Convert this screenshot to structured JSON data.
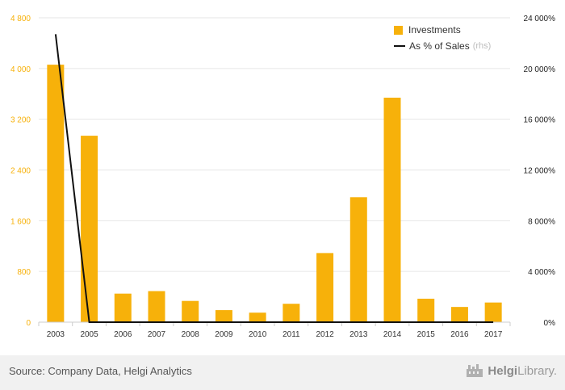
{
  "chart_data": {
    "type": "bar",
    "categories": [
      "2003",
      "2005",
      "2006",
      "2007",
      "2008",
      "2009",
      "2010",
      "2011",
      "2012",
      "2013",
      "2014",
      "2015",
      "2016",
      "2017"
    ],
    "series": [
      {
        "name": "Investments",
        "axis": "left",
        "type": "bar",
        "values": [
          4060,
          2940,
          450,
          490,
          335,
          190,
          150,
          290,
          1090,
          1970,
          3540,
          370,
          240,
          310
        ]
      },
      {
        "name": "As % of Sales",
        "axis": "right",
        "type": "line",
        "values": [
          22700,
          0,
          0,
          0,
          0,
          0,
          0,
          0,
          0,
          0,
          0,
          0,
          0,
          0
        ]
      }
    ],
    "y_left": {
      "ticks": [
        "0",
        "800",
        "1 600",
        "2 400",
        "3 200",
        "4 000",
        "4 800"
      ],
      "ylim": [
        0,
        4800
      ]
    },
    "y_right": {
      "ticks": [
        "0%",
        "4 000%",
        "8 000%",
        "12 000%",
        "16 000%",
        "20 000%",
        "24 000%"
      ],
      "ylim": [
        0,
        24000
      ]
    },
    "grid": true,
    "legend_position": "top-right",
    "colors": {
      "bar": "#f7b10a",
      "line": "#111111",
      "left_axis_labels": "#f7b10a"
    }
  },
  "legend": {
    "investments_label": "Investments",
    "ratio_label": "As % of Sales",
    "ratio_note": "(rhs)"
  },
  "footer": {
    "source": "Source: Company Data, Helgi Analytics",
    "brand_prefix": "Helgi",
    "brand_suffix": "Library."
  }
}
